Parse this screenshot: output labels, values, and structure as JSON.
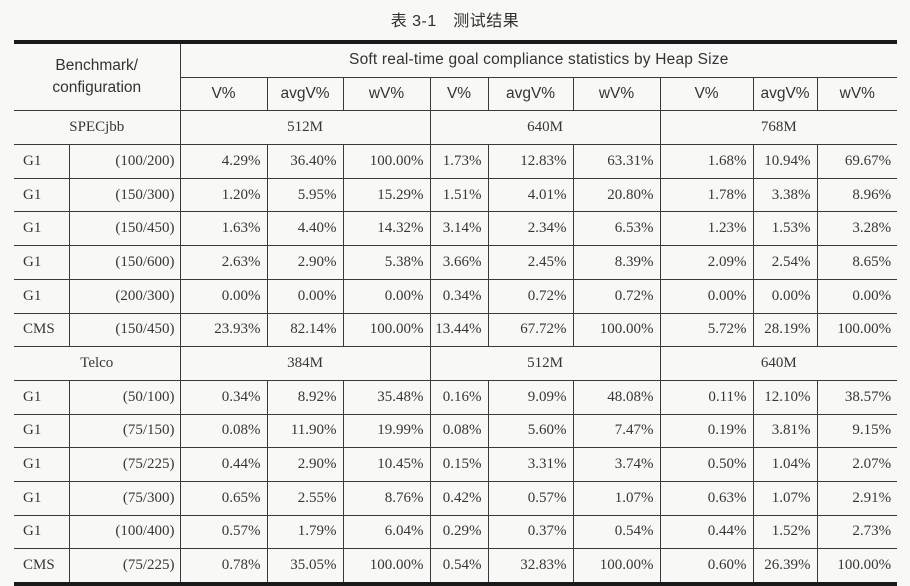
{
  "page": {
    "title": "表 3-1　测试结果"
  },
  "table": {
    "header": {
      "row_label_line1": "Benchmark/",
      "row_label_line2": "configuration",
      "span_label": "Soft real-time goal compliance statistics by Heap Size",
      "metrics": [
        "V%",
        "avgV%",
        "wV%"
      ]
    },
    "sections": [
      {
        "benchmark": "SPECjbb",
        "heap_sizes": [
          "512M",
          "640M",
          "768M"
        ],
        "rows": [
          {
            "collector": "G1",
            "config": "(100/200)",
            "values": [
              "4.29%",
              "36.40%",
              "100.00%",
              "1.73%",
              "12.83%",
              "63.31%",
              "1.68%",
              "10.94%",
              "69.67%"
            ]
          },
          {
            "collector": "G1",
            "config": "(150/300)",
            "values": [
              "1.20%",
              "5.95%",
              "15.29%",
              "1.51%",
              "4.01%",
              "20.80%",
              "1.78%",
              "3.38%",
              "8.96%"
            ]
          },
          {
            "collector": "G1",
            "config": "(150/450)",
            "values": [
              "1.63%",
              "4.40%",
              "14.32%",
              "3.14%",
              "2.34%",
              "6.53%",
              "1.23%",
              "1.53%",
              "3.28%"
            ]
          },
          {
            "collector": "G1",
            "config": "(150/600)",
            "values": [
              "2.63%",
              "2.90%",
              "5.38%",
              "3.66%",
              "2.45%",
              "8.39%",
              "2.09%",
              "2.54%",
              "8.65%"
            ]
          },
          {
            "collector": "G1",
            "config": "(200/300)",
            "values": [
              "0.00%",
              "0.00%",
              "0.00%",
              "0.34%",
              "0.72%",
              "0.72%",
              "0.00%",
              "0.00%",
              "0.00%"
            ]
          },
          {
            "collector": "CMS",
            "config": "(150/450)",
            "values": [
              "23.93%",
              "82.14%",
              "100.00%",
              "13.44%",
              "67.72%",
              "100.00%",
              "5.72%",
              "28.19%",
              "100.00%"
            ]
          }
        ]
      },
      {
        "benchmark": "Telco",
        "heap_sizes": [
          "384M",
          "512M",
          "640M"
        ],
        "rows": [
          {
            "collector": "G1",
            "config": "(50/100)",
            "values": [
              "0.34%",
              "8.92%",
              "35.48%",
              "0.16%",
              "9.09%",
              "48.08%",
              "0.11%",
              "12.10%",
              "38.57%"
            ]
          },
          {
            "collector": "G1",
            "config": "(75/150)",
            "values": [
              "0.08%",
              "11.90%",
              "19.99%",
              "0.08%",
              "5.60%",
              "7.47%",
              "0.19%",
              "3.81%",
              "9.15%"
            ]
          },
          {
            "collector": "G1",
            "config": "(75/225)",
            "values": [
              "0.44%",
              "2.90%",
              "10.45%",
              "0.15%",
              "3.31%",
              "3.74%",
              "0.50%",
              "1.04%",
              "2.07%"
            ]
          },
          {
            "collector": "G1",
            "config": "(75/300)",
            "values": [
              "0.65%",
              "2.55%",
              "8.76%",
              "0.42%",
              "0.57%",
              "1.07%",
              "0.63%",
              "1.07%",
              "2.91%"
            ]
          },
          {
            "collector": "G1",
            "config": "(100/400)",
            "values": [
              "0.57%",
              "1.79%",
              "6.04%",
              "0.29%",
              "0.37%",
              "0.54%",
              "0.44%",
              "1.52%",
              "2.73%"
            ]
          },
          {
            "collector": "CMS",
            "config": "(75/225)",
            "values": [
              "0.78%",
              "35.05%",
              "100.00%",
              "0.54%",
              "32.83%",
              "100.00%",
              "0.60%",
              "26.39%",
              "100.00%"
            ]
          }
        ]
      }
    ]
  },
  "colors": {
    "page_background": "#f8f8f6",
    "text": "#363636",
    "rule_thick": "#1a1a1a",
    "rule_thin": "#3a3a3a"
  }
}
